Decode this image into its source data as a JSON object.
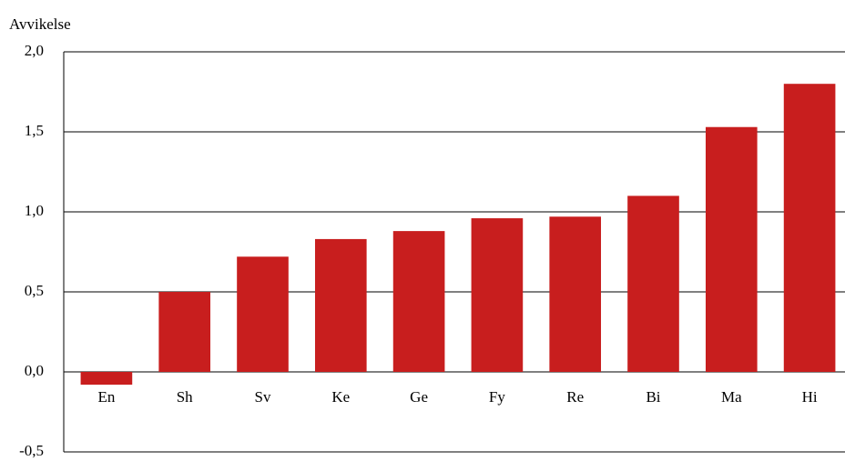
{
  "chart_data": {
    "type": "bar",
    "y_label": "Avvikelse",
    "categories": [
      "En",
      "Sh",
      "Sv",
      "Ke",
      "Ge",
      "Fy",
      "Re",
      "Bi",
      "Ma",
      "Hi"
    ],
    "values": [
      -0.08,
      0.5,
      0.72,
      0.83,
      0.88,
      0.96,
      0.97,
      1.1,
      1.53,
      1.8
    ],
    "color": "#c81e1e",
    "ylim": [
      -0.5,
      2.0
    ],
    "yticks": [
      {
        "value": -0.5,
        "label": "-0,5"
      },
      {
        "value": 0,
        "label": "0,0"
      },
      {
        "value": 0.5,
        "label": "0,5"
      },
      {
        "value": 1.0,
        "label": "1,0"
      },
      {
        "value": 1.5,
        "label": "1,5"
      },
      {
        "value": 2.0,
        "label": "2,0"
      }
    ],
    "grid": true
  }
}
